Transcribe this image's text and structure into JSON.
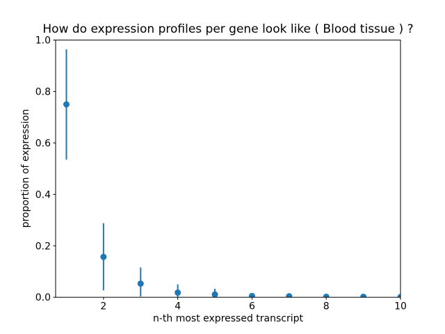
{
  "figure": {
    "background": "#ffffff"
  },
  "chart_data": {
    "type": "scatter",
    "subtype": "errorbar",
    "title": "How do expression profiles per gene look like ( Blood tissue ) ?",
    "xlabel": "n-th most expressed transcript",
    "ylabel": "proportion of expression",
    "marker": "o",
    "marker_color": "#1f77b4",
    "errorbar_color": "#1f77b4",
    "axis_color": "#000000",
    "grid": false,
    "legend": null,
    "xlim": [
      0.71,
      10
    ],
    "ylim": [
      0,
      1
    ],
    "xticks": [
      2,
      4,
      6,
      8,
      10
    ],
    "xtick_labels": [
      "2",
      "4",
      "6",
      "8",
      "10"
    ],
    "yticks": [
      0.0,
      0.2,
      0.4,
      0.6,
      0.8,
      1.0
    ],
    "ytick_labels": [
      "0.0",
      "0.2",
      "0.4",
      "0.6",
      "0.8",
      "1.0"
    ],
    "x": [
      1,
      2,
      3,
      4,
      5,
      6,
      7,
      8,
      9,
      10
    ],
    "y": [
      0.75,
      0.157,
      0.053,
      0.018,
      0.011,
      0.005,
      0.004,
      0.002,
      0.002,
      0.001
    ],
    "err_lo": [
      0.535,
      0.027,
      0.003,
      0.001,
      0.001,
      0.001,
      0.001,
      0.0,
      0.0,
      0.0
    ],
    "err_hi": [
      0.964,
      0.288,
      0.116,
      0.05,
      0.033,
      0.012,
      0.009,
      0.006,
      0.005,
      0.004
    ]
  }
}
